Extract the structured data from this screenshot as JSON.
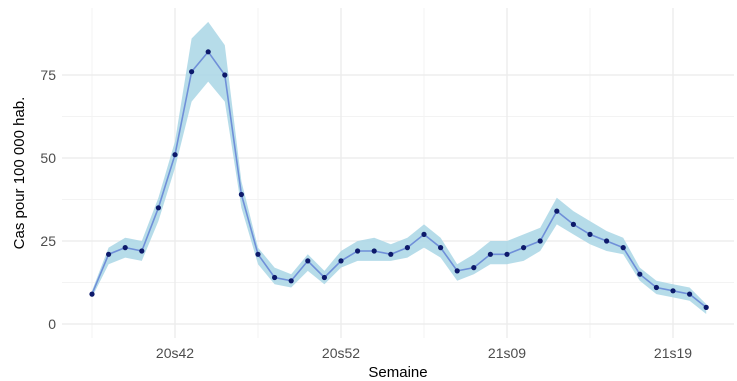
{
  "chart_data": {
    "type": "line",
    "xlabel": "Semaine",
    "ylabel": "Cas pour 100 000 hab.",
    "ylim": [
      0,
      91
    ],
    "grid": true,
    "x_tick_labels": [
      "20s42",
      "20s52",
      "21s09",
      "21s19"
    ],
    "x_tick_indices": [
      5,
      15,
      25,
      35
    ],
    "y_ticks": [
      0,
      25,
      50,
      75
    ],
    "colors": {
      "line": "#6f8fd8",
      "band": "#a9d6e5",
      "points": "#0d1a6b",
      "grid": "#ebebeb",
      "panel": "#ffffff"
    },
    "series": [
      {
        "values": [
          9,
          21,
          23,
          22,
          35,
          51,
          76,
          82,
          75,
          39,
          21,
          14,
          13,
          19,
          14,
          19,
          22,
          22,
          21,
          23,
          27,
          23,
          16,
          17,
          21,
          21,
          23,
          25,
          34,
          30,
          27,
          25,
          23,
          15,
          11,
          10,
          9,
          5
        ],
        "lower": [
          8,
          18,
          20,
          19,
          31,
          47,
          67,
          73,
          67,
          35,
          18,
          12,
          11,
          16,
          12,
          17,
          19,
          19,
          19,
          20,
          23,
          20,
          13,
          15,
          18,
          18,
          19,
          22,
          30,
          27,
          24,
          22,
          21,
          13,
          9,
          8,
          7,
          3
        ],
        "upper": [
          10,
          23,
          26,
          25,
          38,
          55,
          86,
          91,
          84,
          43,
          23,
          17,
          15,
          21,
          16,
          22,
          25,
          26,
          24,
          26,
          30,
          26,
          18,
          21,
          25,
          25,
          27,
          29,
          38,
          34,
          31,
          28,
          26,
          17,
          13,
          12,
          11,
          6
        ]
      }
    ]
  }
}
